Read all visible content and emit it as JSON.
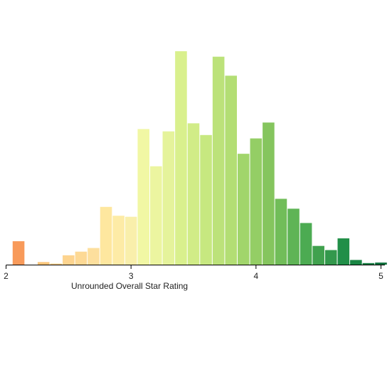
{
  "chart_data": {
    "type": "bar",
    "xlabel": "Unrounded Overall Star Rating",
    "x_ticks": [
      "2",
      "3",
      "4",
      "5"
    ],
    "x_tick_values": [
      2,
      3,
      4,
      5
    ],
    "xlim": [
      2.0,
      5.05
    ],
    "bin_width": 0.1,
    "grid": false,
    "legend": "none",
    "bins": [
      {
        "x0": 2.05,
        "value": 9,
        "color": "#f89a5a"
      },
      {
        "x0": 2.15,
        "value": 0,
        "color": "#fbb971"
      },
      {
        "x0": 2.25,
        "value": 1,
        "color": "#fcc57b"
      },
      {
        "x0": 2.35,
        "value": 0.4,
        "color": "#fdcd86"
      },
      {
        "x0": 2.45,
        "value": 3.6,
        "color": "#fdd48f"
      },
      {
        "x0": 2.55,
        "value": 5,
        "color": "#fdd995"
      },
      {
        "x0": 2.65,
        "value": 6.4,
        "color": "#fddf9d"
      },
      {
        "x0": 2.75,
        "value": 22.2,
        "color": "#fee79f"
      },
      {
        "x0": 2.85,
        "value": 18.8,
        "color": "#fdeba6"
      },
      {
        "x0": 2.95,
        "value": 18.4,
        "color": "#f9efab"
      },
      {
        "x0": 3.05,
        "value": 52.1,
        "color": "#f1f7a4"
      },
      {
        "x0": 3.15,
        "value": 37.8,
        "color": "#ecf5a0"
      },
      {
        "x0": 3.25,
        "value": 51.2,
        "color": "#e5f39b"
      },
      {
        "x0": 3.35,
        "value": 82,
        "color": "#d9f08d"
      },
      {
        "x0": 3.45,
        "value": 54.3,
        "color": "#d1ec87"
      },
      {
        "x0": 3.55,
        "value": 49.8,
        "color": "#c7e880"
      },
      {
        "x0": 3.65,
        "value": 79.9,
        "color": "#bce27a"
      },
      {
        "x0": 3.75,
        "value": 72.6,
        "color": "#b3de74"
      },
      {
        "x0": 3.85,
        "value": 42.6,
        "color": "#a1d56b"
      },
      {
        "x0": 3.95,
        "value": 48.5,
        "color": "#94ce65"
      },
      {
        "x0": 4.05,
        "value": 54.6,
        "color": "#85c55e"
      },
      {
        "x0": 4.15,
        "value": 25.3,
        "color": "#71bd59"
      },
      {
        "x0": 4.25,
        "value": 21.5,
        "color": "#5fb456"
      },
      {
        "x0": 4.35,
        "value": 16,
        "color": "#4cab52"
      },
      {
        "x0": 4.45,
        "value": 7.2,
        "color": "#40a14e"
      },
      {
        "x0": 4.55,
        "value": 5.6,
        "color": "#33984c"
      },
      {
        "x0": 4.65,
        "value": 10.1,
        "color": "#218f48"
      },
      {
        "x0": 4.75,
        "value": 1.8,
        "color": "#198544"
      },
      {
        "x0": 4.85,
        "value": 0.6,
        "color": "#137a40"
      },
      {
        "x0": 4.95,
        "value": 0.8,
        "color": "#0e703c"
      }
    ],
    "ylim": [
      0,
      100
    ]
  }
}
